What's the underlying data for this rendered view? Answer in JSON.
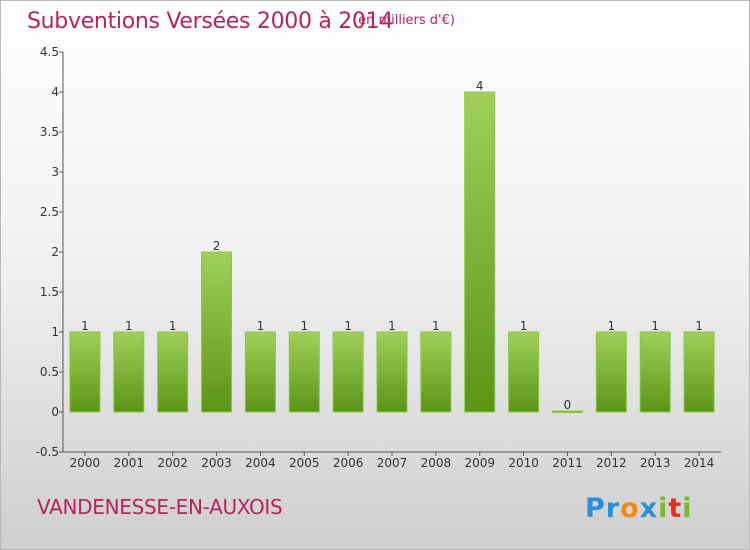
{
  "header": {
    "title": "Subventions Versées 2000 à 2014",
    "subtitle": "(en milliers d'€)"
  },
  "footer": {
    "commune": "VANDENESSE-EN-AUXOIS",
    "brand": "Proxiti"
  },
  "colors": {
    "title": "#b5245c",
    "bar_top": "#a0d05a",
    "bar_bottom": "#5c9416",
    "bar_edge": "#8cc63f"
  },
  "chart_data": {
    "type": "bar",
    "categories": [
      "2000",
      "2001",
      "2002",
      "2003",
      "2004",
      "2005",
      "2006",
      "2007",
      "2008",
      "2009",
      "2010",
      "2011",
      "2012",
      "2013",
      "2014"
    ],
    "values": [
      1,
      1,
      1,
      2,
      1,
      1,
      1,
      1,
      1,
      4,
      1,
      0,
      1,
      1,
      1
    ],
    "data_labels": [
      "1",
      "1",
      "1",
      "2",
      "1",
      "1",
      "1",
      "1",
      "1",
      "4",
      "1",
      "0",
      "1",
      "1",
      "1"
    ],
    "title": "Subventions Versées 2000 à 2014",
    "subtitle": "(en milliers d'€)",
    "xlabel": "",
    "ylabel": "",
    "ylim": [
      -0.5,
      4.5
    ],
    "yticks": [
      -0.5,
      0,
      0.5,
      1,
      1.5,
      2,
      2.5,
      3,
      3.5,
      4,
      4.5
    ],
    "ytick_labels": [
      "-0.5",
      "0",
      "0.5",
      "1",
      "1.5",
      "2",
      "2.5",
      "3",
      "3.5",
      "4",
      "4.5"
    ],
    "grid": false,
    "legend": "none"
  }
}
